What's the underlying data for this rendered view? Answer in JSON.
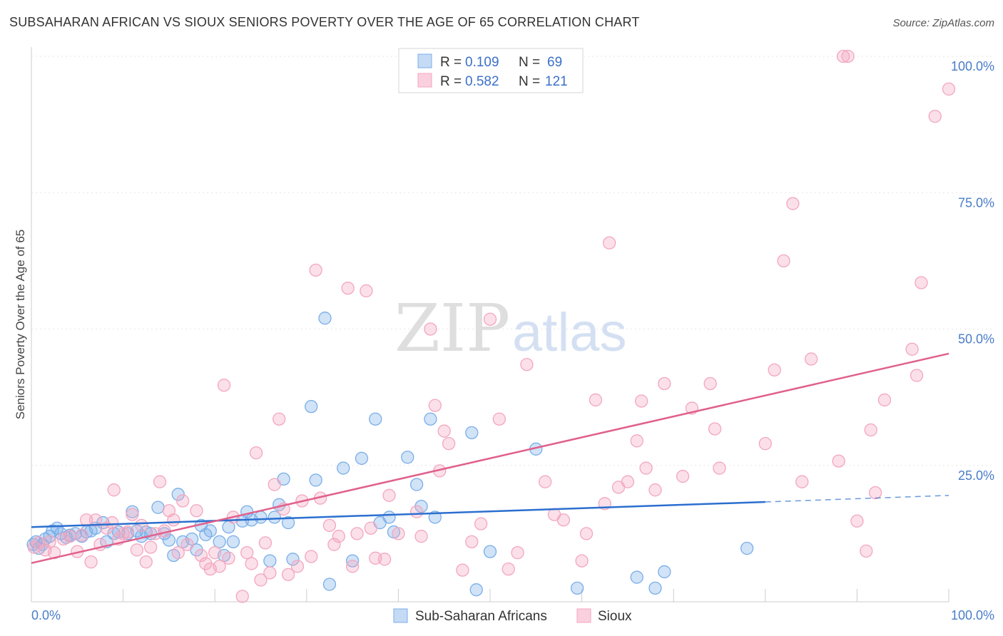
{
  "title": "SUBSAHARAN AFRICAN VS SIOUX SENIORS POVERTY OVER THE AGE OF 65 CORRELATION CHART",
  "source": "Source: ZipAtlas.com",
  "watermark": {
    "zip": "ZIP",
    "atlas": "atlas"
  },
  "chart_data": {
    "type": "scatter",
    "ylabel": "Seniors Poverty Over the Age of 65",
    "xlabel": "",
    "xlim": [
      0,
      100
    ],
    "ylim": [
      0,
      100
    ],
    "x_tick_labels": [
      "0.0%",
      "100.0%"
    ],
    "y_ticks": [
      {
        "value": 100,
        "label": "100.0%"
      },
      {
        "value": 75,
        "label": "75.0%"
      },
      {
        "value": 50,
        "label": "50.0%"
      },
      {
        "value": 25,
        "label": "25.0%"
      }
    ],
    "grid": true,
    "legend_placement": "top-center",
    "series": [
      {
        "name": "Sub-Saharan Africans",
        "color": "#7aaee8",
        "line_color": "#2b6fcf",
        "stats": {
          "r_label": "R =",
          "r_value": "0.109",
          "n_label": "N =",
          "n_value": "69"
        },
        "trend": {
          "x0": 0,
          "y0": 13.7,
          "x1": 80,
          "y1": 18.3,
          "dash_x1": 100,
          "dash_y1": 19.5
        },
        "points": [
          [
            0.2,
            10.5
          ],
          [
            0.5,
            11
          ],
          [
            0.8,
            9.8
          ],
          [
            1.2,
            10.5
          ],
          [
            1.5,
            11.5
          ],
          [
            2,
            12
          ],
          [
            2.3,
            13
          ],
          [
            2.8,
            13.5
          ],
          [
            3.2,
            12.5
          ],
          [
            3.8,
            11.8
          ],
          [
            4.2,
            12.2
          ],
          [
            4.8,
            12.5
          ],
          [
            5.5,
            12
          ],
          [
            6,
            12.8
          ],
          [
            6.5,
            13
          ],
          [
            7,
            13.5
          ],
          [
            7.8,
            14.5
          ],
          [
            8.2,
            11
          ],
          [
            9,
            12.5
          ],
          [
            9.5,
            12.8
          ],
          [
            10.5,
            12.5
          ],
          [
            11,
            16.5
          ],
          [
            11.5,
            13
          ],
          [
            12,
            12
          ],
          [
            12.5,
            12.8
          ],
          [
            13,
            12.5
          ],
          [
            13.8,
            17.3
          ],
          [
            14.5,
            12.5
          ],
          [
            15,
            11.3
          ],
          [
            15.5,
            8.5
          ],
          [
            16,
            19.7
          ],
          [
            16.5,
            11
          ],
          [
            17.5,
            11.5
          ],
          [
            18,
            9.5
          ],
          [
            18.5,
            14
          ],
          [
            19,
            12.3
          ],
          [
            19.5,
            13
          ],
          [
            20.5,
            11
          ],
          [
            21,
            8.5
          ],
          [
            21.5,
            13.7
          ],
          [
            22,
            11
          ],
          [
            23,
            14.8
          ],
          [
            23.5,
            16.5
          ],
          [
            24,
            15
          ],
          [
            25,
            15.5
          ],
          [
            26,
            7.5
          ],
          [
            26.5,
            15.5
          ],
          [
            27,
            17.8
          ],
          [
            27.5,
            22.5
          ],
          [
            28,
            14.5
          ],
          [
            28.5,
            7.8
          ],
          [
            30.5,
            35.8
          ],
          [
            31,
            22.3
          ],
          [
            32,
            52
          ],
          [
            32.5,
            3.2
          ],
          [
            34,
            24.5
          ],
          [
            35,
            7.5
          ],
          [
            36,
            26.3
          ],
          [
            37.5,
            33.5
          ],
          [
            38,
            14.5
          ],
          [
            39,
            15.5
          ],
          [
            39.5,
            12.8
          ],
          [
            41,
            26.5
          ],
          [
            42,
            21.5
          ],
          [
            42.5,
            17.5
          ],
          [
            43.5,
            33.5
          ],
          [
            44,
            15.5
          ],
          [
            48,
            31
          ],
          [
            50,
            9.2
          ],
          [
            55,
            28
          ],
          [
            59.5,
            2.5
          ],
          [
            66,
            4.5
          ],
          [
            68,
            2.5
          ],
          [
            69,
            5.5
          ],
          [
            78,
            9.8
          ],
          [
            48.5,
            2.2
          ]
        ]
      },
      {
        "name": "Sioux",
        "color": "#f3a6bf",
        "line_color": "#e0608c",
        "stats": {
          "r_label": "R =",
          "r_value": "0.582",
          "n_label": "N =",
          "n_value": "121"
        },
        "trend": {
          "x0": 0,
          "y0": 7.1,
          "x1": 100,
          "y1": 45.5
        },
        "points": [
          [
            0.3,
            10
          ],
          [
            0.8,
            10.8
          ],
          [
            1.5,
            9.5
          ],
          [
            2,
            11
          ],
          [
            2.5,
            9
          ],
          [
            3.5,
            11.5
          ],
          [
            4.2,
            12
          ],
          [
            5,
            9.2
          ],
          [
            5.5,
            12.2
          ],
          [
            6,
            15
          ],
          [
            6.5,
            7.3
          ],
          [
            7,
            15
          ],
          [
            7.5,
            10.5
          ],
          [
            8.2,
            13.5
          ],
          [
            8.8,
            14.5
          ],
          [
            9,
            20.5
          ],
          [
            9.5,
            11.5
          ],
          [
            10,
            12.5
          ],
          [
            10.5,
            12.8
          ],
          [
            11,
            16
          ],
          [
            11.5,
            9.5
          ],
          [
            12,
            14
          ],
          [
            12.5,
            7.3
          ],
          [
            13,
            10
          ],
          [
            13.5,
            12.5
          ],
          [
            14,
            22
          ],
          [
            14.5,
            13
          ],
          [
            15,
            16.7
          ],
          [
            15.5,
            15
          ],
          [
            16,
            9
          ],
          [
            16.5,
            18.5
          ],
          [
            17,
            10.5
          ],
          [
            18,
            16.7
          ],
          [
            18.5,
            8.5
          ],
          [
            19,
            7
          ],
          [
            19.5,
            6
          ],
          [
            20,
            9
          ],
          [
            20.5,
            6.5
          ],
          [
            21,
            39.7
          ],
          [
            21.5,
            8
          ],
          [
            22,
            15.5
          ],
          [
            23,
            1
          ],
          [
            23.5,
            9
          ],
          [
            24,
            7
          ],
          [
            24.5,
            27.3
          ],
          [
            25,
            4
          ],
          [
            25.5,
            10.8
          ],
          [
            26,
            5.3
          ],
          [
            26.5,
            21.5
          ],
          [
            27,
            33.5
          ],
          [
            27.5,
            17
          ],
          [
            28,
            5
          ],
          [
            29,
            6.5
          ],
          [
            29.5,
            18.5
          ],
          [
            30.5,
            8.3
          ],
          [
            31,
            60.8
          ],
          [
            31.5,
            19
          ],
          [
            32.5,
            14
          ],
          [
            33,
            10.5
          ],
          [
            33.5,
            12
          ],
          [
            34.5,
            57.5
          ],
          [
            35,
            6.5
          ],
          [
            35.5,
            12.5
          ],
          [
            36.5,
            57
          ],
          [
            37,
            13.5
          ],
          [
            37.5,
            8
          ],
          [
            38.5,
            7.8
          ],
          [
            39,
            19.5
          ],
          [
            40,
            12.5
          ],
          [
            42,
            16.5
          ],
          [
            42.5,
            12
          ],
          [
            43.5,
            50
          ],
          [
            44,
            36
          ],
          [
            44.5,
            24
          ],
          [
            45,
            31.3
          ],
          [
            45.5,
            29
          ],
          [
            47,
            5.8
          ],
          [
            48,
            11
          ],
          [
            49,
            14.3
          ],
          [
            50,
            51.8
          ],
          [
            51,
            33.5
          ],
          [
            52,
            6
          ],
          [
            53,
            9
          ],
          [
            54,
            43.5
          ],
          [
            56,
            22
          ],
          [
            57,
            16
          ],
          [
            58,
            15
          ],
          [
            60,
            7.5
          ],
          [
            60.5,
            12.5
          ],
          [
            61.5,
            37
          ],
          [
            62.5,
            18
          ],
          [
            63,
            65.8
          ],
          [
            64,
            21
          ],
          [
            65,
            22
          ],
          [
            66,
            29.5
          ],
          [
            66.5,
            36.8
          ],
          [
            67,
            24.5
          ],
          [
            68,
            20.5
          ],
          [
            69,
            40
          ],
          [
            71,
            23
          ],
          [
            72,
            35.5
          ],
          [
            74,
            40
          ],
          [
            74.5,
            31.7
          ],
          [
            75,
            24.5
          ],
          [
            80,
            29
          ],
          [
            81,
            42.5
          ],
          [
            82,
            62.5
          ],
          [
            83,
            73
          ],
          [
            84,
            22
          ],
          [
            85,
            44.5
          ],
          [
            88,
            25.8
          ],
          [
            88.5,
            100
          ],
          [
            89,
            100
          ],
          [
            90,
            14.8
          ],
          [
            91,
            9.3
          ],
          [
            91.5,
            31.5
          ],
          [
            92,
            20
          ],
          [
            93,
            37
          ],
          [
            96,
            46.3
          ],
          [
            96.5,
            41.5
          ],
          [
            97,
            58.5
          ],
          [
            98.5,
            89
          ],
          [
            100,
            94
          ]
        ]
      }
    ]
  }
}
